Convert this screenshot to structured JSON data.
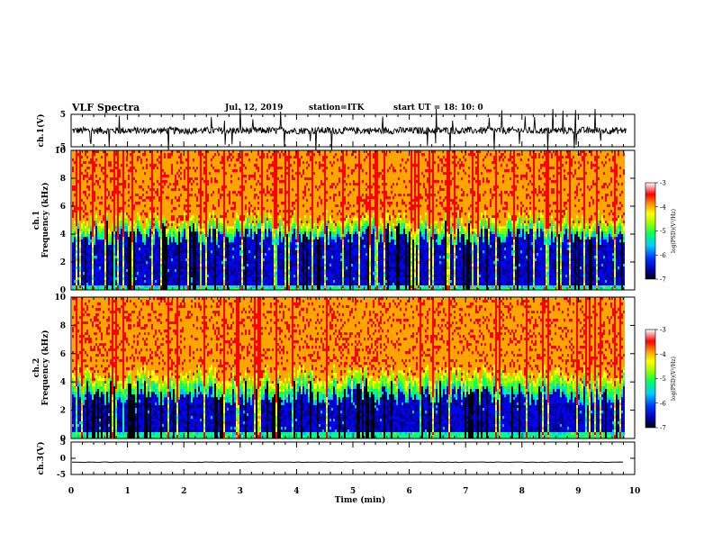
{
  "header": {
    "title": "VLF Spectra",
    "date": "Jul. 12, 2019",
    "station": "station=ITK",
    "start": "start UT = 18: 10: 0"
  },
  "chart_data": [
    {
      "type": "line",
      "ylabel": "ch.1(V)",
      "ylim": [
        -5,
        5
      ],
      "yticks": [
        "5",
        "-5"
      ],
      "x": [
        0,
        1,
        2,
        3,
        4,
        5,
        6,
        7,
        8,
        9,
        9.8
      ],
      "series": [
        {
          "values": [
            0,
            0.3,
            -0.4,
            0.5,
            0.2,
            -0.6,
            0.4,
            0.1,
            -0.3,
            0.6,
            0.2
          ]
        }
      ]
    },
    {
      "type": "heatmap",
      "ylabel": "ch.1\nFrequency (kHz)",
      "ylim": [
        0,
        10
      ],
      "yticks": [
        "0",
        "2",
        "4",
        "6",
        "8",
        "10"
      ],
      "colorbar": {
        "label": "log(PSD)(V²/Hz)",
        "range": [
          -7,
          -3
        ],
        "ticks": [
          "-3",
          "-4",
          "-5",
          "-6",
          "-7"
        ]
      },
      "description_bands_khz": {
        "low_blue_below": 3.8,
        "green_transition": [
          3.8,
          5
        ],
        "red_above": 5
      }
    },
    {
      "type": "heatmap",
      "ylabel": "ch.2\nFrequency (kHz)",
      "ylim": [
        0,
        10
      ],
      "yticks": [
        "0",
        "2",
        "4",
        "6",
        "8",
        "10"
      ],
      "colorbar": {
        "label": "log(PSD)(V²/Hz)",
        "range": [
          -7,
          -3
        ],
        "ticks": [
          "-3",
          "-4",
          "-5",
          "-6",
          "-7"
        ]
      },
      "description_bands_khz": {
        "low_blue_below": 3.0,
        "green_transition": [
          3.0,
          4.5
        ],
        "red_above": 4.5
      }
    },
    {
      "type": "line",
      "ylabel": "ch.3(V)",
      "ylim": [
        -5,
        5
      ],
      "yticks": [
        "5",
        "0",
        "-5"
      ],
      "x": [
        0,
        9.8
      ],
      "series": [
        {
          "values": [
            -1.2,
            -1.2
          ]
        }
      ]
    }
  ],
  "xaxis": {
    "label": "Time (min)",
    "xlim": [
      0,
      10
    ],
    "ticks": [
      "0",
      "1",
      "2",
      "3",
      "4",
      "5",
      "6",
      "7",
      "8",
      "9",
      "10"
    ]
  },
  "colors": {
    "panel_frame": "#000000",
    "trace": "#000000",
    "colormap": [
      "#000000",
      "#00008b",
      "#0000ff",
      "#00bfff",
      "#00ff7f",
      "#7fff00",
      "#ffff00",
      "#ffa500",
      "#ff0000",
      "#ffffff"
    ]
  }
}
